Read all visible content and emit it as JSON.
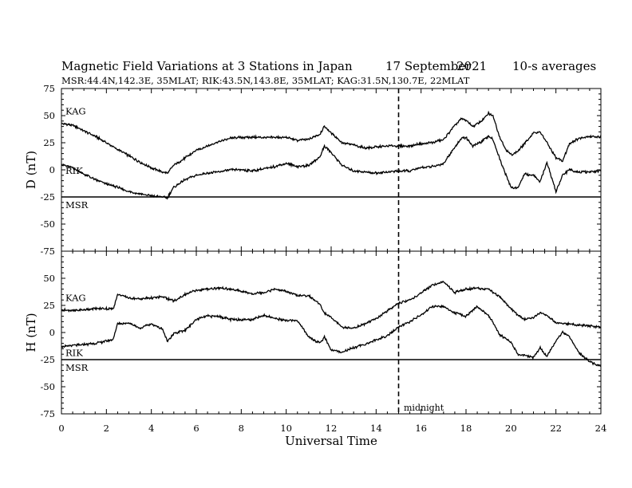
{
  "header": {
    "title": "Magnetic Field Variations at 3 Stations in Japan",
    "date_day": "17 September",
    "date_year": "2021",
    "averaging": "10-s averages",
    "stations_line": "MSR:44.4N,142.3E, 35MLAT;  RIK:43.5N,143.8E, 35MLAT;  KAG:31.5N,130.7E, 22MLAT"
  },
  "chart_data": {
    "type": "line",
    "xlabel": "Universal Time",
    "xlim": [
      0,
      24
    ],
    "xticks": [
      "0",
      "2",
      "4",
      "6",
      "8",
      "10",
      "12",
      "14",
      "16",
      "18",
      "20",
      "22",
      "24"
    ],
    "marker": {
      "x": 15,
      "label": "midnight",
      "style": "dashed"
    },
    "grid": false,
    "panels": [
      {
        "ylabel": "D (nT)",
        "ylim": [
          -75,
          75
        ],
        "yticks": [
          "75",
          "50",
          "25",
          "0",
          "-25",
          "-50",
          "-75"
        ],
        "series": [
          {
            "name": "KAG",
            "x": [
              0,
              0.5,
              1,
              1.5,
              2,
              2.5,
              3,
              3.5,
              4,
              4.5,
              4.7,
              5,
              5.5,
              6,
              6.5,
              7,
              7.5,
              8,
              8.5,
              9,
              9.5,
              10,
              10.5,
              11,
              11.5,
              11.7,
              12,
              12.5,
              13,
              13.5,
              14,
              14.5,
              15,
              15.5,
              16,
              16.5,
              17,
              17.5,
              17.8,
              18,
              18.3,
              18.7,
              19,
              19.2,
              19.5,
              19.8,
              20,
              20.3,
              20.6,
              21,
              21.3,
              21.6,
              22,
              22.3,
              22.6,
              23,
              23.5,
              24
            ],
            "y": [
              43,
              41,
              36,
              31,
              25,
              19,
              13,
              7,
              2,
              -2,
              -3,
              4,
              11,
              18,
              22,
              26,
              29,
              30,
              30,
              30,
              30,
              30,
              27,
              28,
              33,
              40,
              34,
              25,
              23,
              20,
              21,
              22,
              22,
              22,
              24,
              25,
              28,
              41,
              47,
              46,
              40,
              45,
              52,
              50,
              30,
              18,
              14,
              17,
              24,
              34,
              35,
              25,
              11,
              8,
              24,
              29,
              31,
              30
            ]
          },
          {
            "name": "RIK",
            "x": [
              0,
              0.5,
              1,
              1.5,
              2,
              2.5,
              3,
              3.5,
              4,
              4.5,
              4.7,
              5,
              5.5,
              6,
              6.5,
              7,
              7.5,
              8,
              8.5,
              9,
              9.5,
              10,
              10.5,
              11,
              11.5,
              11.7,
              12,
              12.5,
              13,
              13.5,
              14,
              14.5,
              15,
              15.5,
              16,
              16.5,
              17,
              17.5,
              17.8,
              18,
              18.3,
              18.7,
              19,
              19.2,
              19.5,
              19.8,
              20,
              20.3,
              20.6,
              21,
              21.3,
              21.6,
              22,
              22.3,
              22.6,
              23,
              23.5,
              24
            ],
            "y": [
              5,
              2,
              -4,
              -9,
              -13,
              -16,
              -20,
              -22,
              -24,
              -25,
              -26,
              -16,
              -9,
              -5,
              -3,
              -2,
              0,
              0,
              -1,
              1,
              3,
              6,
              3,
              4,
              12,
              22,
              16,
              4,
              -1,
              -2,
              -3,
              -2,
              -1,
              -1,
              2,
              3,
              6,
              21,
              29,
              30,
              22,
              26,
              31,
              28,
              10,
              -6,
              -16,
              -17,
              -4,
              -5,
              -11,
              7,
              -20,
              -5,
              0,
              -2,
              -2,
              -1
            ]
          },
          {
            "name": "MSR",
            "x": [
              0,
              2,
              4,
              6,
              8,
              10,
              12,
              14,
              16,
              18,
              20,
              22,
              24
            ],
            "y": [
              -25,
              -25,
              -25,
              -25,
              -25,
              -25,
              -25,
              -25,
              -25,
              -25,
              -25,
              -25,
              -25
            ]
          }
        ]
      },
      {
        "ylabel": "H (nT)",
        "ylim": [
          -75,
          75
        ],
        "yticks": [
          "75",
          "50",
          "25",
          "0",
          "-25",
          "-50",
          "-75"
        ],
        "series": [
          {
            "name": "KAG",
            "x": [
              0,
              0.5,
              1,
              1.5,
              2,
              2.3,
              2.5,
              3,
              3.5,
              4,
              4.5,
              5,
              5.5,
              6,
              6.5,
              7,
              7.5,
              8,
              8.5,
              9,
              9.5,
              10,
              10.5,
              11,
              11.5,
              11.7,
              12,
              12.5,
              13,
              13.5,
              14,
              14.5,
              15,
              15.5,
              16,
              16.5,
              17,
              17.5,
              18,
              18.5,
              19,
              19.5,
              20,
              20.3,
              20.6,
              21,
              21.3,
              21.6,
              22,
              22.5,
              23,
              23.5,
              24
            ],
            "y": [
              21,
              20,
              21,
              22,
              22,
              22,
              35,
              32,
              31,
              32,
              33,
              29,
              35,
              39,
              40,
              41,
              40,
              38,
              36,
              37,
              40,
              38,
              34,
              34,
              26,
              18,
              14,
              5,
              4,
              8,
              13,
              20,
              27,
              30,
              36,
              44,
              47,
              37,
              40,
              41,
              40,
              33,
              22,
              16,
              12,
              14,
              18,
              16,
              9,
              8,
              7,
              6,
              5
            ]
          },
          {
            "name": "RIK",
            "x": [
              0,
              0.5,
              1,
              1.5,
              2,
              2.3,
              2.5,
              3,
              3.5,
              4,
              4.5,
              4.7,
              5,
              5.5,
              6,
              6.5,
              7,
              7.5,
              8,
              8.5,
              9,
              9.5,
              10,
              10.5,
              11,
              11.5,
              11.7,
              12,
              12.5,
              13,
              13.5,
              14,
              14.5,
              15,
              15.5,
              16,
              16.5,
              17,
              17.5,
              18,
              18.5,
              19,
              19.5,
              20,
              20.3,
              20.6,
              21,
              21.3,
              21.6,
              22,
              22.3,
              22.6,
              23,
              23.5,
              24
            ],
            "y": [
              -13,
              -12,
              -11,
              -10,
              -8,
              -6,
              8,
              9,
              4,
              8,
              3,
              -8,
              -1,
              2,
              12,
              15,
              15,
              12,
              12,
              12,
              16,
              13,
              11,
              11,
              -4,
              -10,
              -4,
              -16,
              -18,
              -14,
              -11,
              -7,
              -3,
              5,
              10,
              16,
              24,
              24,
              18,
              15,
              24,
              16,
              -2,
              -9,
              -20,
              -21,
              -23,
              -14,
              -22,
              -8,
              0,
              -4,
              -18,
              -27,
              -31
            ]
          },
          {
            "name": "MSR",
            "x": [
              0,
              2,
              4,
              6,
              8,
              10,
              12,
              14,
              16,
              18,
              20,
              22,
              24
            ],
            "y": [
              -25,
              -25,
              -25,
              -25,
              -25,
              -25,
              -25,
              -25,
              -25,
              -25,
              -25,
              -25,
              -25
            ]
          }
        ]
      }
    ]
  }
}
